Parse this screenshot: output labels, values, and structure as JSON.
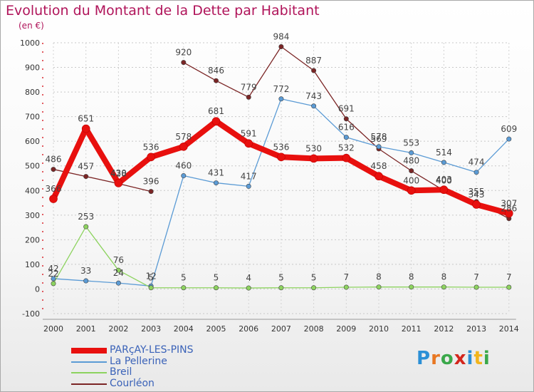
{
  "header": {
    "title": "Evolution du Montant de la Dette par Habitant",
    "unit": "(en €)"
  },
  "logo": {
    "letters": [
      "P",
      "r",
      "o",
      "x",
      "i",
      "t",
      "i"
    ],
    "colors": [
      "#2b8fd6",
      "#e87722",
      "#3aa84a",
      "#d3261d",
      "#2b8fd6",
      "#f2b51d",
      "#3aa84a"
    ]
  },
  "chart_data": {
    "type": "line",
    "x": [
      "2000",
      "2001",
      "2002",
      "2003",
      "2004",
      "2005",
      "2006",
      "2007",
      "2008",
      "2009",
      "2010",
      "2011",
      "2012",
      "2013",
      "2014"
    ],
    "ylim": [
      -100,
      1000
    ],
    "yticks": [
      "-100",
      "0",
      "100",
      "200",
      "300",
      "400",
      "500",
      "600",
      "700",
      "800",
      "900",
      "1000"
    ],
    "grid": true,
    "legend_position": "bottom-left",
    "series": [
      {
        "name": "PARçAY-LES-PINS",
        "color": "#e8100e",
        "width": 8,
        "values": [
          366,
          651,
          430,
          536,
          578,
          681,
          591,
          536,
          530,
          532,
          458,
          400,
          403,
          343,
          307
        ],
        "labels": [
          "366",
          "651",
          "430",
          "536",
          "578",
          "681",
          "591",
          "536",
          "530",
          "532",
          "458",
          "400",
          "403",
          "343",
          "307"
        ]
      },
      {
        "name": "La Pellerine",
        "color": "#5b9bd5",
        "width": 1.3,
        "values": [
          42,
          33,
          24,
          12,
          460,
          431,
          417,
          772,
          743,
          616,
          578,
          553,
          514,
          474,
          609
        ],
        "labels": [
          "42",
          "33",
          "24",
          "12",
          "460",
          "431",
          "417",
          "772",
          "743",
          "616",
          "578",
          "553",
          "514",
          "474",
          "609"
        ]
      },
      {
        "name": "Breil",
        "color": "#8dd35f",
        "width": 1.3,
        "values": [
          22,
          253,
          76,
          5,
          5,
          5,
          4,
          5,
          5,
          7,
          8,
          8,
          8,
          7,
          7
        ],
        "labels": [
          "22",
          "253",
          "76",
          "5",
          "5",
          "5",
          "4",
          "5",
          "5",
          "7",
          "8",
          "8",
          "8",
          "7",
          "7"
        ]
      },
      {
        "name": "Courléon",
        "color": "#7b2525",
        "width": 1.3,
        "segments": [
          {
            "x": [
              "2000",
              "2001",
              "2002",
              "2003"
            ],
            "values": [
              486,
              457,
              428,
              396
            ],
            "labels": [
              "486",
              "457",
              "428",
              "396"
            ]
          },
          {
            "x": [
              "2004",
              "2005",
              "2006",
              "2007",
              "2008",
              "2009",
              "2010",
              "2011",
              "2012",
              "2013",
              "2014"
            ],
            "values": [
              920,
              846,
              779,
              984,
              887,
              691,
              569,
              480,
              400,
              355,
              286
            ],
            "labels": [
              "920",
              "846",
              "779",
              "984",
              "887",
              "691",
              "569",
              "480",
              "400",
              "355",
              "286"
            ]
          }
        ]
      }
    ]
  }
}
